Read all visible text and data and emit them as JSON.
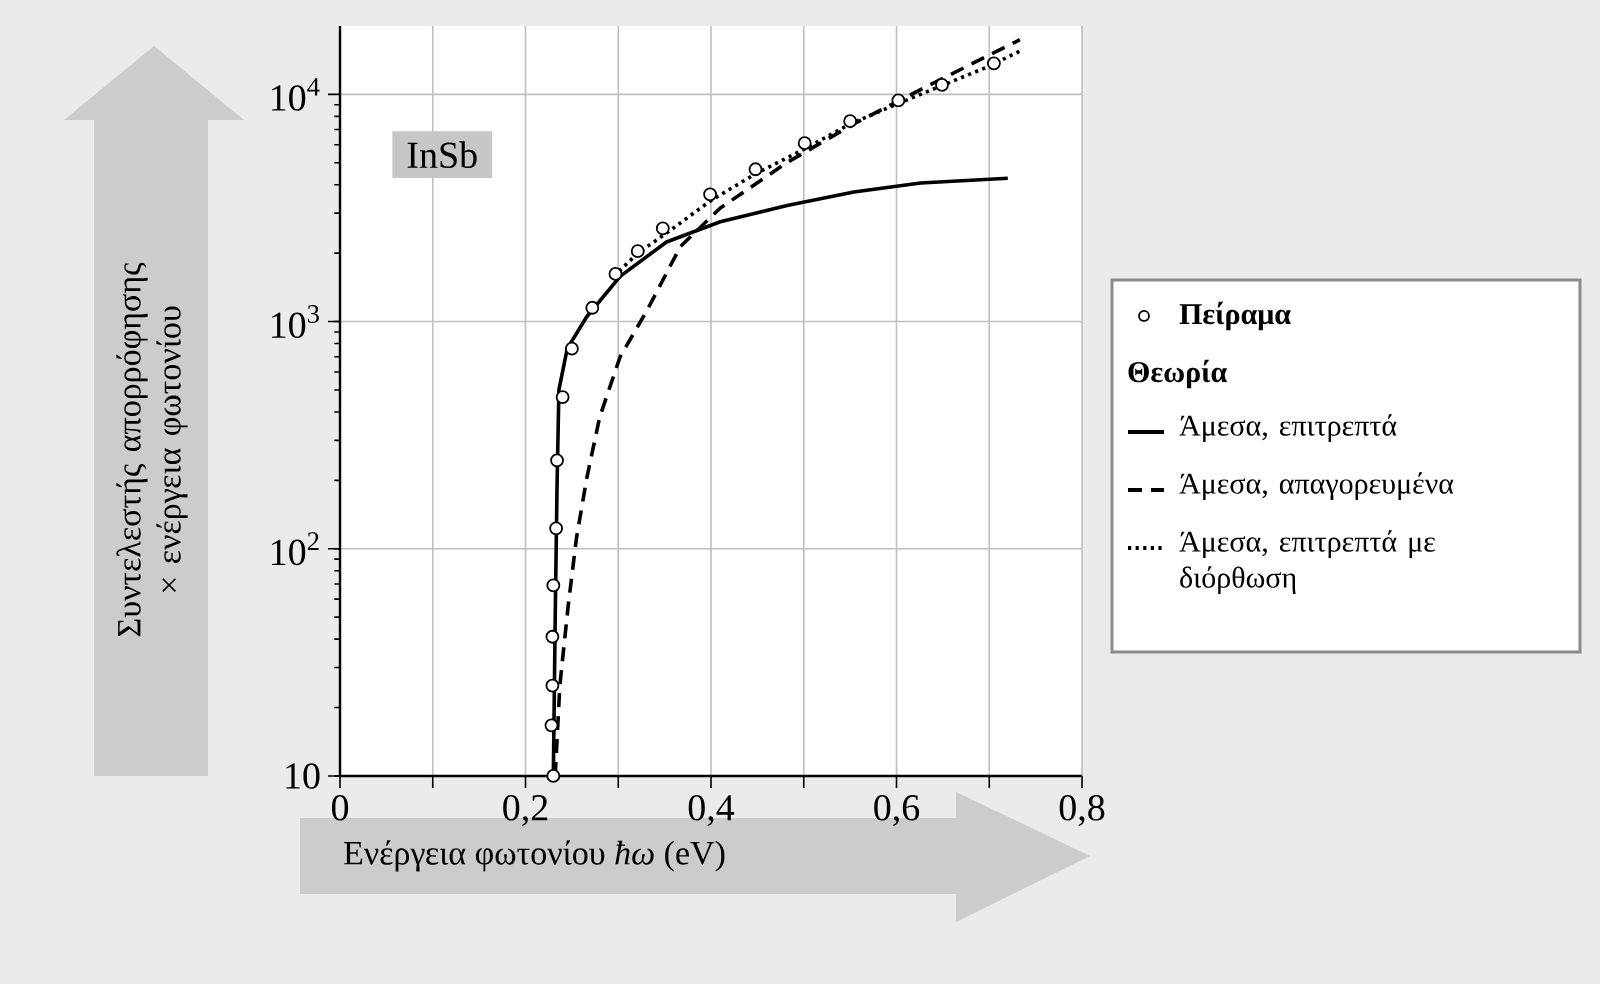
{
  "chart_data": {
    "type": "line",
    "xlabel": "Ενέργεια φωτονίου *ħω* (eV)",
    "ylabel": "Συντελεστής απορρόφησης × ενέργεια φωτονίου",
    "legend_title": "Θεωρία",
    "annotations": [
      "InSb"
    ],
    "xlim": [
      0,
      0.8
    ],
    "ylim": [
      10,
      20000
    ],
    "log": "y",
    "grid": true,
    "legend": "right",
    "xticks": [
      0,
      {
        "value": 0.1,
        "label": null
      },
      {
        "value": 0.2,
        "label": "0,2"
      },
      {
        "value": 0.3,
        "label": null
      },
      {
        "value": 0.4,
        "label": "0,4"
      },
      {
        "value": 0.5,
        "label": null
      },
      {
        "value": 0.6,
        "label": "0,6"
      },
      {
        "value": 0.7,
        "label": null
      },
      {
        "value": 0.8,
        "label": "0,8"
      }
    ],
    "yticks": [
      10,
      {
        "value": 100,
        "label": "10$^{2}$"
      },
      {
        "value": 1000,
        "label": "10$^{3}$"
      },
      {
        "value": 10000,
        "label": "10$^{4}$"
      }
    ],
    "series": [
      {
        "name": "Πείραμα",
        "type": "scatter",
        "marker": "circle",
        "color": "#000000",
        "x": [
          0.23,
          0.228,
          0.229,
          0.229,
          0.23,
          0.233,
          0.234,
          0.24,
          0.25,
          0.272,
          0.297,
          0.321,
          0.348,
          0.399,
          0.448,
          0.501,
          0.55,
          0.602,
          0.649,
          0.705
        ],
        "values": [
          10,
          16.7,
          25,
          41,
          69,
          123,
          245,
          465,
          760,
          1150,
          1620,
          2040,
          2570,
          3630,
          4680,
          6100,
          7630,
          9400,
          11000,
          13700
        ]
      },
      {
        "name": "Άμεσα, επιτρεπτά",
        "line_style": "solid",
        "color": "#000000",
        "x": [
          0.23,
          0.232,
          0.234,
          0.236,
          0.245,
          0.266,
          0.302,
          0.352,
          0.41,
          0.482,
          0.554,
          0.626,
          0.72
        ],
        "values": [
          10,
          49,
          190,
          500,
          760,
          1050,
          1580,
          2240,
          2750,
          3240,
          3720,
          4070,
          4270
        ]
      },
      {
        "name": "Άμεσα, απαγορευμένα",
        "line_style": "dashed",
        "color": "#000000",
        "x": [
          0.232,
          0.237,
          0.246,
          0.255,
          0.266,
          0.28,
          0.302,
          0.331,
          0.367,
          0.41,
          0.482,
          0.554,
          0.626,
          0.733
        ],
        "values": [
          10,
          25,
          56,
          112,
          204,
          380,
          700,
          1120,
          2140,
          3160,
          5010,
          7410,
          10500,
          17400
        ]
      },
      {
        "name": "Άμεσα, επιτρεπτά με διόρθωση",
        "line_style": "dotted",
        "color": "#000000",
        "x": [
          0.295,
          0.321,
          0.352,
          0.399,
          0.448,
          0.501,
          0.55,
          0.602,
          0.698,
          0.733
        ],
        "values": [
          1580,
          2000,
          2450,
          3390,
          4470,
          5750,
          7410,
          9120,
          13200,
          15500
        ]
      }
    ]
  }
}
